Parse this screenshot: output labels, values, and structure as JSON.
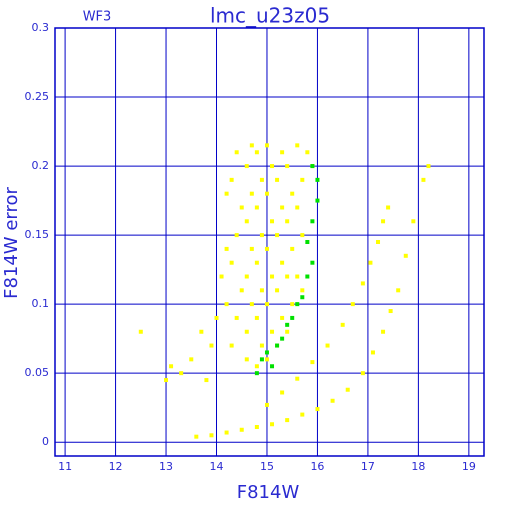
{
  "chart_data": {
    "type": "scatter",
    "title": "lmc_u23z05",
    "annotation": "WF3",
    "x_label": "F814W",
    "y_label": "F814W error",
    "xlim": [
      10.8,
      19.3
    ],
    "ylim": [
      -0.01,
      0.3
    ],
    "xticks": [
      11,
      12,
      13,
      14,
      15,
      16,
      17,
      18,
      19
    ],
    "yticks": [
      0,
      0.05,
      0.1,
      0.15,
      0.2,
      0.25,
      0.3
    ],
    "grid": true,
    "grid_color": "#0000c8",
    "series": [
      {
        "name": null,
        "color": "#ffff00",
        "x": [
          14.3,
          14.4,
          14.5,
          14.3,
          14.4,
          14.5,
          14.3,
          14.4,
          14.6,
          14.6,
          14.7,
          14.6,
          14.7,
          14.6,
          14.7,
          14.6,
          14.7,
          14.8,
          14.9,
          14.8,
          14.9,
          14.8,
          14.9,
          14.8,
          14.9,
          14.8,
          15.0,
          15.1,
          15.0,
          15.1,
          15.0,
          15.1,
          15.0,
          15.1,
          15.0,
          15.2,
          15.3,
          15.2,
          15.3,
          15.2,
          15.3,
          15.2,
          15.3,
          15.4,
          15.5,
          15.4,
          15.5,
          15.4,
          15.5,
          15.4,
          15.6,
          15.6,
          15.7,
          15.6,
          15.7,
          15.8,
          15.9,
          14.2,
          14.2,
          14.2,
          14.1,
          14.0,
          13.9,
          13.7,
          13.5,
          13.3,
          13.1,
          12.5,
          13.0,
          13.8,
          15.7,
          13.6,
          13.9,
          14.2,
          14.5,
          14.8,
          15.1,
          15.4,
          15.7,
          16.0,
          16.3,
          16.6,
          16.9,
          17.1,
          17.3,
          17.45,
          17.6,
          17.75,
          17.9,
          18.1,
          18.2,
          15.0,
          15.3,
          15.6,
          15.9,
          16.2,
          16.5,
          16.7,
          16.9,
          17.05,
          17.2,
          17.3,
          17.4
        ],
        "values": [
          0.07,
          0.09,
          0.11,
          0.13,
          0.15,
          0.17,
          0.19,
          0.21,
          0.06,
          0.08,
          0.1,
          0.12,
          0.14,
          0.16,
          0.18,
          0.2,
          0.215,
          0.055,
          0.07,
          0.09,
          0.11,
          0.13,
          0.15,
          0.17,
          0.19,
          0.21,
          0.06,
          0.08,
          0.1,
          0.12,
          0.14,
          0.16,
          0.18,
          0.2,
          0.215,
          0.07,
          0.09,
          0.11,
          0.13,
          0.15,
          0.17,
          0.19,
          0.21,
          0.08,
          0.1,
          0.12,
          0.14,
          0.16,
          0.18,
          0.2,
          0.215,
          0.12,
          0.15,
          0.17,
          0.19,
          0.21,
          0.2,
          0.1,
          0.14,
          0.18,
          0.12,
          0.09,
          0.07,
          0.08,
          0.06,
          0.05,
          0.055,
          0.08,
          0.045,
          0.045,
          0.11,
          0.004,
          0.005,
          0.007,
          0.009,
          0.011,
          0.013,
          0.016,
          0.02,
          0.024,
          0.03,
          0.038,
          0.05,
          0.065,
          0.08,
          0.095,
          0.11,
          0.135,
          0.16,
          0.19,
          0.2,
          0.027,
          0.036,
          0.046,
          0.058,
          0.07,
          0.085,
          0.1,
          0.115,
          0.13,
          0.145,
          0.16,
          0.17
        ]
      },
      {
        "name": null,
        "color": "#00e000",
        "x": [
          14.9,
          15.0,
          15.2,
          15.3,
          15.4,
          15.5,
          15.6,
          15.7,
          15.8,
          15.9,
          15.8,
          15.9,
          16.0,
          16.0,
          15.9,
          15.1,
          14.8
        ],
        "values": [
          0.06,
          0.065,
          0.07,
          0.075,
          0.085,
          0.09,
          0.1,
          0.105,
          0.12,
          0.13,
          0.145,
          0.16,
          0.175,
          0.19,
          0.2,
          0.055,
          0.05
        ]
      }
    ]
  }
}
